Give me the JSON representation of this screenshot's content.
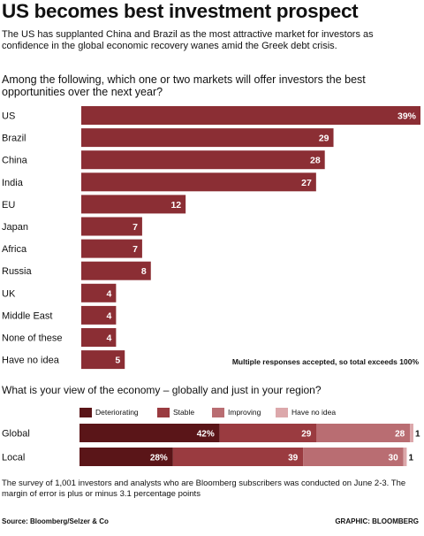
{
  "title": "US becomes best investment prospect",
  "subtitle": "The US has supplanted China and Brazil as the most attractive market for investors as confidence in the global economic recovery wanes amid the Greek debt crisis.",
  "question1": "Among the following, which one or two markets will offer investors the best opportunities over the next year?",
  "note": "Multiple responses accepted, so total exceeds 100%",
  "question2": "What is your view of the economy – globally and just in your region?",
  "footnote": "The survey of 1,001 investors and analysts who are Bloomberg subscribers was conducted on June 2-3. The margin of error is plus or minus 3.1 percentage points",
  "source": "Source: Bloomberg/Selzer & Co",
  "credit": "GRAPHIC: BLOOMBERG",
  "colors": {
    "bar": "#8b2e34",
    "deteriorating": "#5a1518",
    "stable": "#9a3b40",
    "improving": "#b96d72",
    "have_no_idea": "#dca8ab"
  },
  "chart_data": [
    {
      "type": "bar",
      "orientation": "horizontal",
      "categories": [
        "US",
        "Brazil",
        "China",
        "India",
        "EU",
        "Japan",
        "Africa",
        "Russia",
        "UK",
        "Middle East",
        "None of these",
        "Have no idea"
      ],
      "values": [
        39,
        29,
        28,
        27,
        12,
        7,
        7,
        8,
        4,
        4,
        4,
        5
      ],
      "value_labels": [
        "39%",
        "29",
        "28",
        "27",
        "12",
        "7",
        "7",
        "8",
        "4",
        "4",
        "4",
        "5"
      ],
      "xlim": [
        0,
        39
      ]
    },
    {
      "type": "bar",
      "orientation": "horizontal",
      "stacked": true,
      "categories": [
        "Global",
        "Local"
      ],
      "series": [
        {
          "name": "Deteriorating",
          "values": [
            42,
            28
          ],
          "labels": [
            "42%",
            "28%"
          ]
        },
        {
          "name": "Stable",
          "values": [
            29,
            39
          ],
          "labels": [
            "29",
            "39"
          ]
        },
        {
          "name": "Improving",
          "values": [
            28,
            30
          ],
          "labels": [
            "28",
            "30"
          ]
        },
        {
          "name": "Have no idea",
          "values": [
            1,
            1
          ],
          "labels": [
            "1",
            "1"
          ]
        }
      ],
      "xlim": [
        0,
        100
      ]
    }
  ]
}
